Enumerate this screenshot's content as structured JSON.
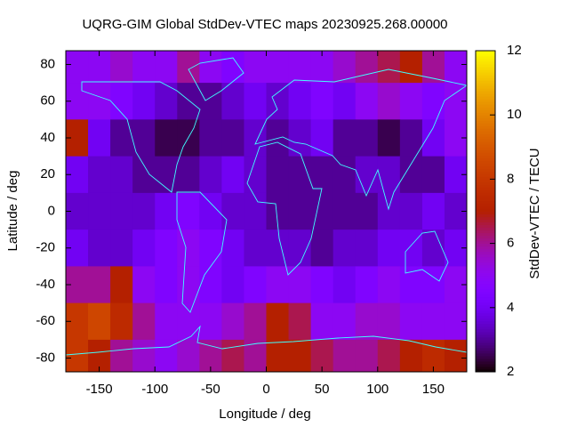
{
  "chart_data": {
    "type": "heatmap",
    "title": "UQRG-GIM Global StdDev-VTEC maps 20230925.268.00000",
    "x_label": "Longitude / deg",
    "y_label": "Latitude / deg",
    "colorbar_label": "StdDev-VTEC / TECU",
    "xlim": [
      -180,
      180
    ],
    "ylim": [
      -87.5,
      87.5
    ],
    "xticks": [
      -150,
      -100,
      -50,
      0,
      50,
      100,
      150
    ],
    "yticks": [
      -80,
      -60,
      -40,
      -20,
      0,
      20,
      40,
      60,
      80
    ],
    "zlim": [
      2,
      12
    ],
    "zticks": [
      2,
      4,
      6,
      8,
      10,
      12
    ],
    "x": [
      -170,
      -150,
      -130,
      -110,
      -90,
      -70,
      -50,
      -30,
      -10,
      10,
      30,
      50,
      70,
      90,
      110,
      130,
      150,
      170
    ],
    "y": [
      80,
      60,
      40,
      20,
      0,
      -20,
      -40,
      -60,
      -80
    ],
    "z": [
      [
        5,
        5,
        5.5,
        5,
        5,
        6,
        5,
        4.5,
        5,
        5,
        5,
        5,
        5.5,
        6,
        6.5,
        7,
        6,
        5
      ],
      [
        5,
        5,
        4.5,
        4,
        3.5,
        3,
        3,
        3.5,
        4,
        3.5,
        4,
        4.5,
        4,
        5,
        5.5,
        5,
        4.5,
        5
      ],
      [
        7,
        4,
        3,
        3,
        2.5,
        2.5,
        3,
        3,
        3.5,
        3,
        3.5,
        4,
        3,
        3,
        2.5,
        3,
        4,
        5
      ],
      [
        4,
        3.5,
        3.5,
        3,
        3,
        3,
        3.5,
        4,
        3.5,
        3,
        3,
        3,
        3,
        3.5,
        3.5,
        3,
        3,
        4
      ],
      [
        3.5,
        3.5,
        3.5,
        3.5,
        4,
        4.5,
        4,
        3.5,
        3.5,
        3,
        3,
        3,
        3,
        3,
        3.5,
        3.5,
        4,
        3.5
      ],
      [
        4,
        3.5,
        3.5,
        4,
        4.5,
        5,
        4.5,
        4,
        3.5,
        3.5,
        3.5,
        3,
        3.5,
        3.5,
        4,
        4,
        3.5,
        4
      ],
      [
        6,
        6,
        7,
        5,
        4.5,
        5,
        4.5,
        4,
        4.5,
        5,
        5,
        4.5,
        4,
        4.5,
        5,
        4.5,
        4.5,
        5
      ],
      [
        8,
        8.5,
        7.5,
        6,
        5,
        5,
        5,
        5.5,
        6,
        7,
        6.5,
        5,
        5,
        5.5,
        5.5,
        5,
        5,
        5
      ],
      [
        8,
        7,
        6,
        5.5,
        5,
        5.5,
        6,
        6.5,
        6,
        7,
        7,
        6.5,
        6,
        6,
        6.5,
        7,
        7.5,
        7
      ]
    ]
  }
}
